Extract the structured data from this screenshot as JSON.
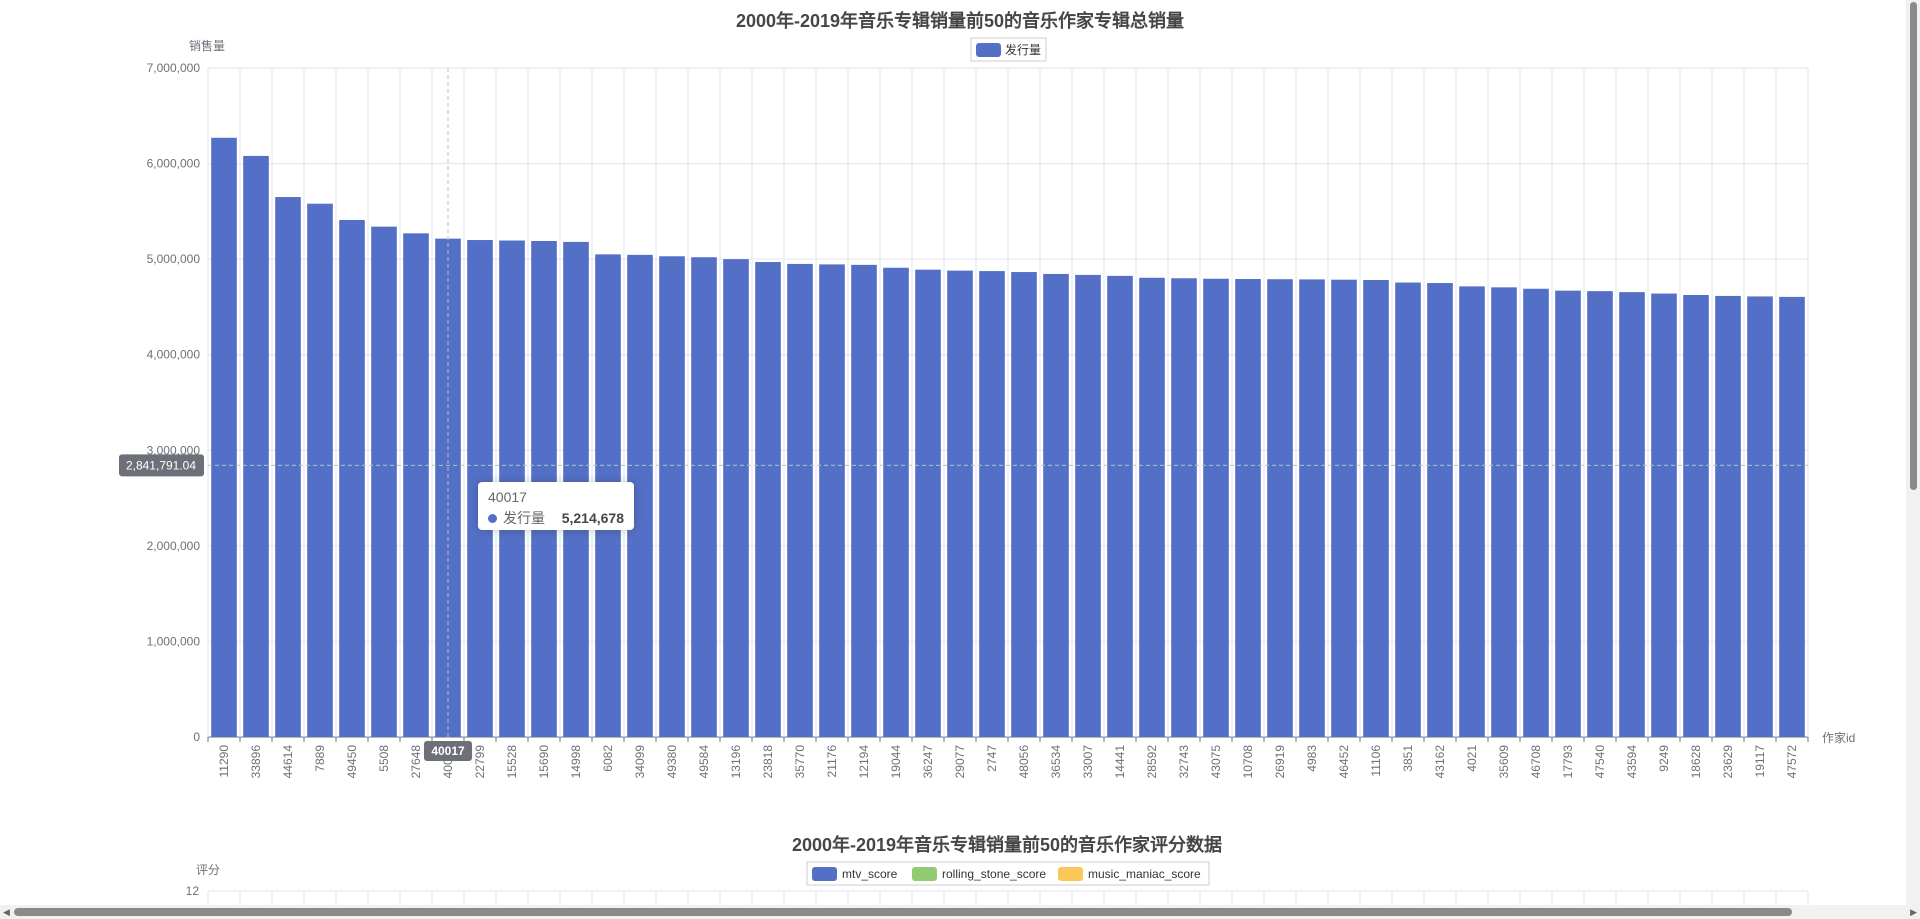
{
  "chart_data": [
    {
      "type": "bar",
      "title": "2000年-2019年音乐专辑销量前50的音乐作家专辑总销量",
      "ylabel": "销售量",
      "xlabel": "作家id",
      "ylim": [
        0,
        7000000
      ],
      "y_ticks": [
        "0",
        "1,000,000",
        "2,000,000",
        "3,000,000",
        "4,000,000",
        "5,000,000",
        "6,000,000",
        "7,000,000"
      ],
      "legend": [
        "发行量"
      ],
      "legend_position": "top-center",
      "grid": true,
      "color": "#5470c6",
      "categories": [
        "11290",
        "33896",
        "44614",
        "7889",
        "49450",
        "5508",
        "27648",
        "40017",
        "22799",
        "15528",
        "15690",
        "14998",
        "6082",
        "34099",
        "49380",
        "49584",
        "13196",
        "23818",
        "35770",
        "21176",
        "12194",
        "19044",
        "36247",
        "29077",
        "2747",
        "48056",
        "36534",
        "33007",
        "14441",
        "28592",
        "32743",
        "43075",
        "10708",
        "26919",
        "4983",
        "46452",
        "11106",
        "3851",
        "43162",
        "4021",
        "35609",
        "46708",
        "17793",
        "47540",
        "43594",
        "9249",
        "18628",
        "23629",
        "19117",
        "47572"
      ],
      "series": [
        {
          "name": "发行量",
          "values": [
            6270000,
            6080000,
            5650000,
            5580000,
            5410000,
            5340000,
            5270000,
            5214678,
            5200000,
            5195000,
            5190000,
            5180000,
            5050000,
            5045000,
            5030000,
            5020000,
            5000000,
            4970000,
            4950000,
            4945000,
            4940000,
            4910000,
            4890000,
            4880000,
            4875000,
            4865000,
            4845000,
            4835000,
            4825000,
            4805000,
            4800000,
            4795000,
            4792000,
            4790000,
            4788000,
            4785000,
            4782000,
            4755000,
            4750000,
            4715000,
            4705000,
            4690000,
            4670000,
            4665000,
            4655000,
            4640000,
            4625000,
            4615000,
            4610000,
            4605000
          ]
        }
      ],
      "pointer": {
        "y_label": "2,841,791.04",
        "x_label": "40017"
      },
      "tooltip": {
        "title": "40017",
        "series_name": "发行量",
        "value": "5,214,678"
      }
    },
    {
      "type": "bar",
      "title": "2000年-2019年音乐专辑销量前50的音乐作家评分数据",
      "ylabel": "评分",
      "y_ticks": [
        "12"
      ],
      "legend_position": "top-center",
      "series": [
        {
          "name": "mtv_score",
          "color": "#5470c6"
        },
        {
          "name": "rolling_stone_score",
          "color": "#91cc75"
        },
        {
          "name": "music_maniac_score",
          "color": "#fac858"
        }
      ]
    }
  ]
}
